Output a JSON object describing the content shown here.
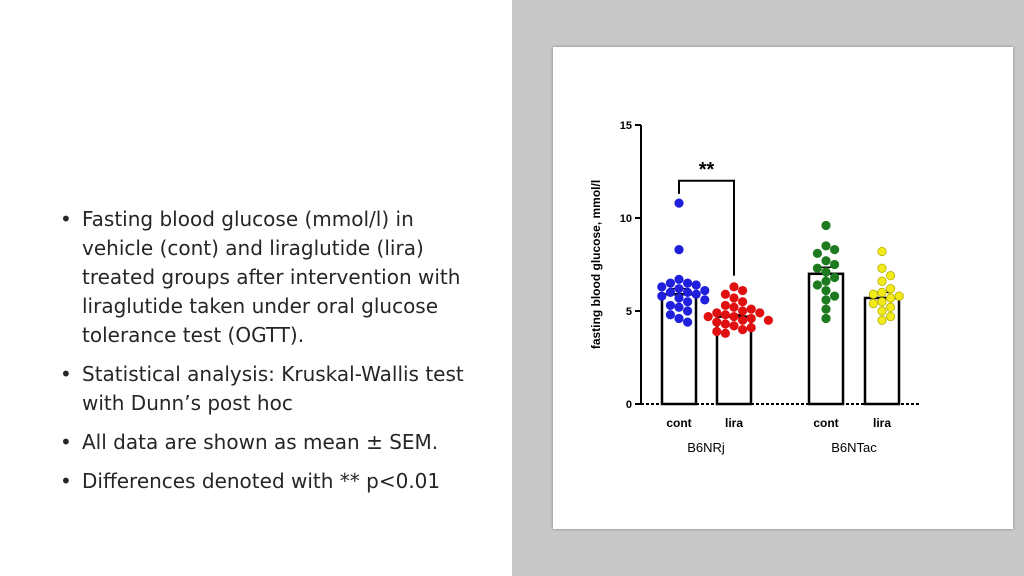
{
  "slide": {
    "bullets": [
      "Fasting blood glucose (mmol/l) in vehicle (cont) and liraglutide (lira) treated groups after intervention with liraglutide taken under oral glucose tolerance test (OGTT).",
      "Statistical analysis: Kruskal-Wallis test with Dunn’s post hoc",
      "All data are shown as mean ± SEM.",
      "Differences denoted with ** p<0.01"
    ],
    "bullet_glyph": "•"
  },
  "chart_data": {
    "type": "bar",
    "ylabel": "fasting blood glucose, mmol/l",
    "ylim": [
      0,
      15
    ],
    "yticks": [
      0,
      5,
      10,
      15
    ],
    "groups": [
      "B6NRj",
      "B6NTac"
    ],
    "categories": [
      "cont",
      "lira",
      "cont",
      "lira"
    ],
    "bars": [
      {
        "group": "B6NRj",
        "label": "cont",
        "mean": 5.9,
        "sem": 0.3,
        "color": "#1f1fdc",
        "points": [
          10.8,
          8.3,
          6.7,
          6.5,
          6.5,
          6.4,
          6.3,
          6.2,
          6.1,
          6.0,
          6.0,
          5.9,
          5.8,
          5.7,
          5.6,
          5.5,
          5.3,
          5.2,
          5.0,
          4.8,
          4.6,
          4.4
        ]
      },
      {
        "group": "B6NRj",
        "label": "lira",
        "mean": 4.7,
        "sem": 0.1,
        "color": "#e01010",
        "points": [
          6.3,
          6.1,
          5.9,
          5.7,
          5.5,
          5.3,
          5.2,
          5.1,
          5.0,
          4.9,
          4.9,
          4.8,
          4.7,
          4.7,
          4.6,
          4.5,
          4.5,
          4.4,
          4.3,
          4.2,
          4.1,
          4.0,
          3.9,
          3.8
        ]
      },
      {
        "group": "B6NTac",
        "label": "cont",
        "mean": 7.0,
        "sem": 0.35,
        "color": "#1e7a1e",
        "points": [
          9.6,
          8.5,
          8.3,
          8.1,
          7.7,
          7.5,
          7.3,
          7.1,
          6.8,
          6.6,
          6.4,
          6.1,
          5.8,
          5.6,
          5.1,
          4.6
        ]
      },
      {
        "group": "B6NTac",
        "label": "lira",
        "mean": 5.7,
        "sem": 0.3,
        "color": "#f2ea1a",
        "points": [
          8.2,
          7.3,
          6.9,
          6.6,
          6.2,
          6.0,
          5.9,
          5.8,
          5.7,
          5.5,
          5.4,
          5.2,
          5.0,
          4.7,
          4.5
        ]
      }
    ],
    "significance": {
      "from": 0,
      "to": 1,
      "label": "**",
      "y": 12.0
    }
  }
}
